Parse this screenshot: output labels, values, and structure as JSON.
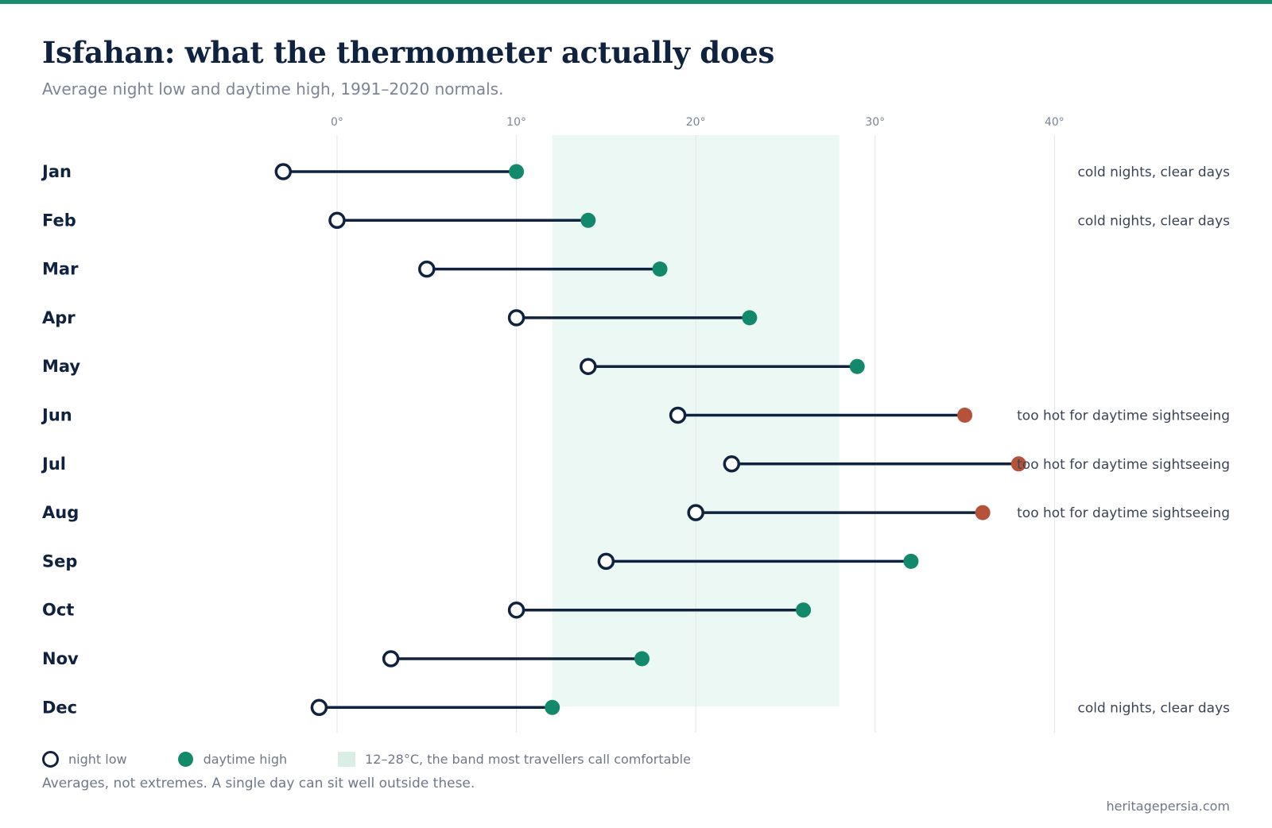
{
  "title": "Isfahan: what the thermometer actually does",
  "subtitle": "Average night low and daytime high, 1991–2020 normals.",
  "colors": {
    "accent": "#1a8c6f",
    "high": "#12896a",
    "hot": "#b5523a",
    "line": "#0f2240",
    "band": "#ecf8f3",
    "band_swatch": "#d9efe6",
    "grid": "#e5e7eb"
  },
  "chart_data": {
    "type": "dumbbell",
    "x_ticks": [
      0,
      10,
      20,
      30,
      40
    ],
    "x_tick_labels": [
      "0°",
      "10°",
      "20°",
      "30°",
      "40°"
    ],
    "xlim": [
      -16,
      50
    ],
    "comfort_band": [
      12,
      28
    ],
    "grid": true,
    "legend": "bottom-left",
    "categories": [
      "Jan",
      "Feb",
      "Mar",
      "Apr",
      "May",
      "Jun",
      "Jul",
      "Aug",
      "Sep",
      "Oct",
      "Nov",
      "Dec"
    ],
    "series": [
      {
        "name": "night low",
        "values": [
          -3,
          0,
          5,
          10,
          14,
          19,
          22,
          20,
          15,
          10,
          3,
          -1
        ]
      },
      {
        "name": "daytime high",
        "values": [
          10,
          14,
          18,
          23,
          29,
          35,
          38,
          36,
          32,
          26,
          17,
          12
        ]
      }
    ],
    "hot_months": [
      "Jun",
      "Jul",
      "Aug"
    ],
    "annotations": [
      "cold nights, clear days",
      "cold nights, clear days",
      "",
      "",
      "",
      "too hot for daytime sightseeing",
      "too hot for daytime sightseeing",
      "too hot for daytime sightseeing",
      "",
      "",
      "",
      "cold nights, clear days"
    ]
  },
  "legend": {
    "low_label": "night low",
    "high_label": "daytime high",
    "band_label": "12–28°C, the band most travellers call comfortable"
  },
  "footnote": "Averages, not extremes. A single day can sit well outside these.",
  "source": "heritagepersia.com"
}
